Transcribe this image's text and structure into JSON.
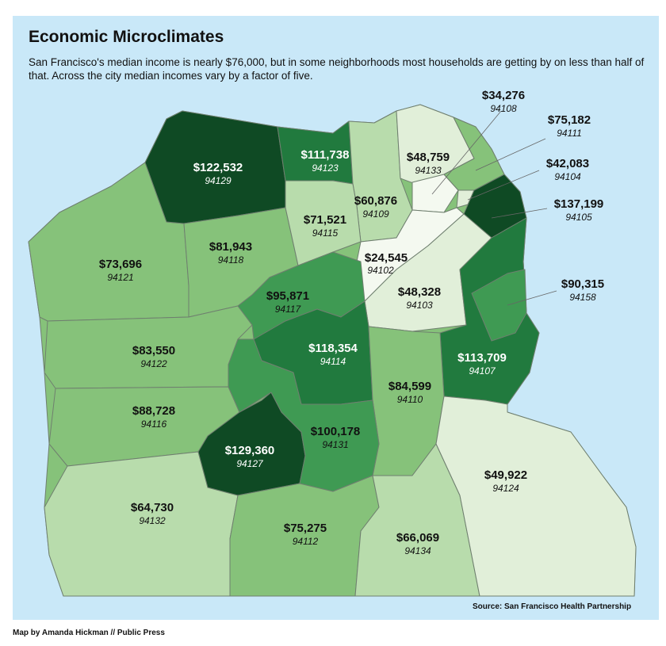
{
  "title": "Economic Microclimates",
  "subtitle": "San Francisco's median income is nearly $76,000, but in some neighborhoods most households are getting by on less than half of that. Across the city median incomes vary by a factor of five.",
  "source": "Source: San Francisco Health Partnership",
  "credit": "Map by Amanda Hickman // Public Press",
  "colors": {
    "water": "#c9e8f8",
    "tier1": "#f4f9f0",
    "tier2": "#e1efd9",
    "tier3": "#b8dcac",
    "tier4": "#86c27a",
    "tier5": "#3f9a53",
    "tier6": "#217a3e",
    "tier7": "#0f4a24",
    "border": "#6f7f6f"
  },
  "regions": [
    {
      "zip": "94129",
      "income": "$122,532"
    },
    {
      "zip": "94123",
      "income": "$111,738"
    },
    {
      "zip": "94133",
      "income": "$48,759"
    },
    {
      "zip": "94108",
      "income": "$34,276"
    },
    {
      "zip": "94111",
      "income": "$75,182"
    },
    {
      "zip": "94104",
      "income": "$42,083"
    },
    {
      "zip": "94105",
      "income": "$137,199"
    },
    {
      "zip": "94109",
      "income": "$60,876"
    },
    {
      "zip": "94115",
      "income": "$71,521"
    },
    {
      "zip": "94102",
      "income": "$24,545"
    },
    {
      "zip": "94103",
      "income": "$48,328"
    },
    {
      "zip": "94158",
      "income": "$90,315"
    },
    {
      "zip": "94121",
      "income": "$73,696"
    },
    {
      "zip": "94118",
      "income": "$81,943"
    },
    {
      "zip": "94117",
      "income": "$95,871"
    },
    {
      "zip": "94122",
      "income": "$83,550"
    },
    {
      "zip": "94114",
      "income": "$118,354"
    },
    {
      "zip": "94107",
      "income": "$113,709"
    },
    {
      "zip": "94116",
      "income": "$88,728"
    },
    {
      "zip": "94110",
      "income": "$84,599"
    },
    {
      "zip": "94127",
      "income": "$129,360"
    },
    {
      "zip": "94131",
      "income": "$100,178"
    },
    {
      "zip": "94124",
      "income": "$49,922"
    },
    {
      "zip": "94132",
      "income": "$64,730"
    },
    {
      "zip": "94112",
      "income": "$75,275"
    },
    {
      "zip": "94134",
      "income": "$66,069"
    }
  ]
}
